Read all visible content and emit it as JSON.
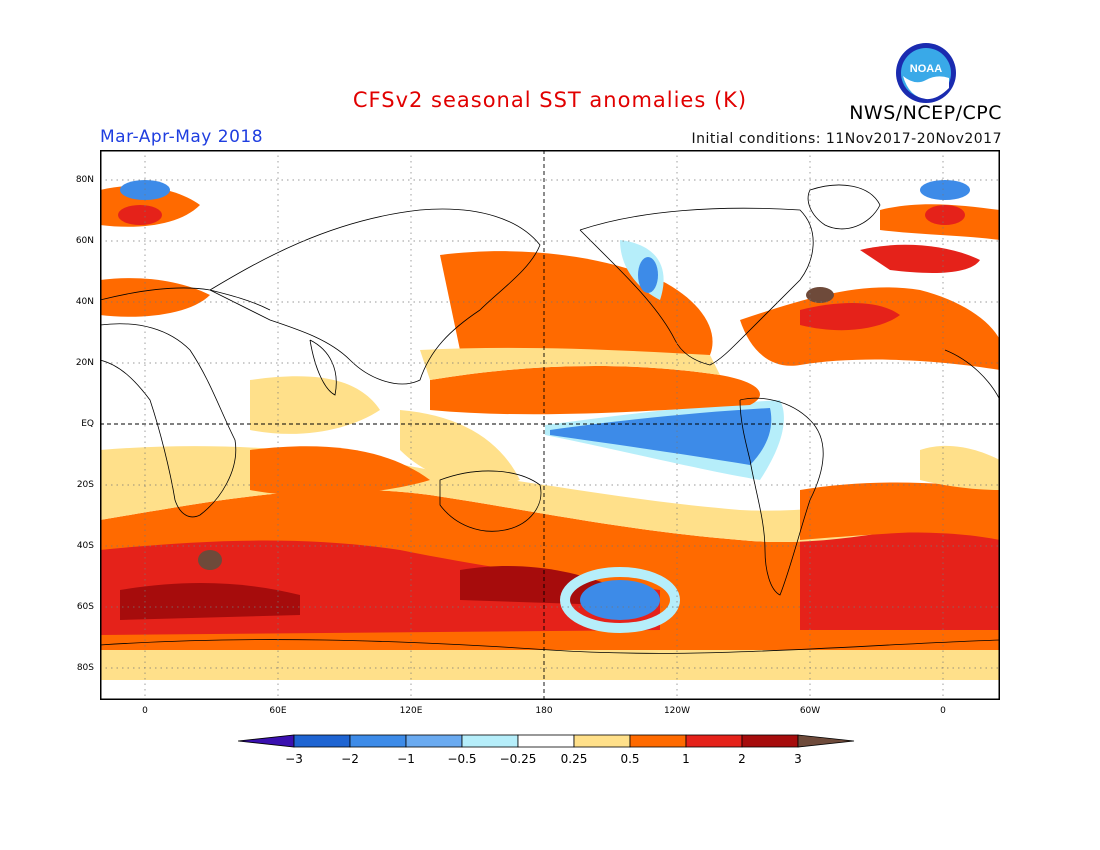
{
  "title": "CFSv2 seasonal SST anomalies (K)",
  "agency": "NWS/NCEP/CPC",
  "logo_text": "NOAA",
  "season": "Mar-Apr-May 2018",
  "initial_conditions": "Initial conditions: 11Nov2017-20Nov2017",
  "map": {
    "latitude_labels": [
      "80N",
      "60N",
      "40N",
      "20N",
      "EQ",
      "20S",
      "40S",
      "60S",
      "80S"
    ],
    "longitude_labels": [
      "0",
      "60E",
      "120E",
      "180",
      "120W",
      "60W",
      "0"
    ],
    "land_color": "#ffffff",
    "coastline_color": "#000000",
    "grid": "dotted"
  },
  "colorbar": {
    "ticks": [
      "-3",
      "-2",
      "-1",
      "-0.5",
      "-0.25",
      "0.25",
      "0.5",
      "1",
      "2",
      "3"
    ],
    "colors": [
      "#3a10b0",
      "#1e64d2",
      "#3d8be8",
      "#6aaaf0",
      "#b6eefa",
      "#ffffff",
      "#ffe08a",
      "#ff6a00",
      "#e5221a",
      "#a60c0c",
      "#6e4a3a"
    ]
  }
}
